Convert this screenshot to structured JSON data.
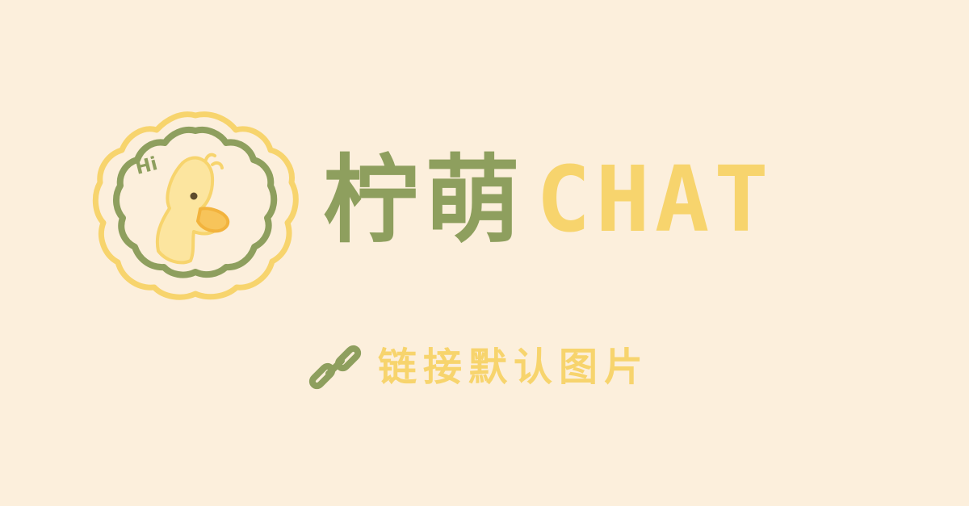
{
  "badge": {
    "greeting": "Hi"
  },
  "brand": {
    "name_cn": "柠萌",
    "name_en": "CHAT"
  },
  "subtitle": {
    "text": "链接默认图片"
  },
  "icons": {
    "link": "chain-link-icon",
    "mascot": "duck-mascot-icon"
  },
  "colors": {
    "background": "#fcefdc",
    "green": "#8e9f5e",
    "yellow": "#f7d46d",
    "orange": "#f2b33d"
  }
}
